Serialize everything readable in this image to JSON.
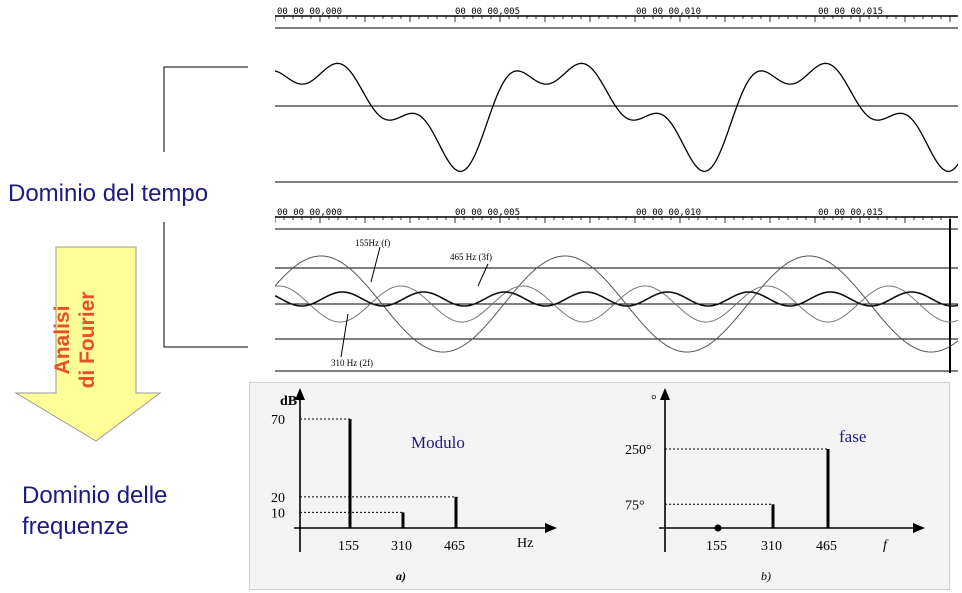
{
  "labels": {
    "time_domain": "Dominio del tempo",
    "freq_domain_line1": "Dominio delle",
    "freq_domain_line2": "frequenze",
    "fourier_line1": "Analisi",
    "fourier_line2": "di Fourier"
  },
  "waveform_top": {
    "timestamps": [
      "00 00 00,000",
      "00 00 00,005",
      "00 00 00,010",
      "00 00 00,015"
    ]
  },
  "waveform_components": {
    "timestamps": [
      "00 00 00,000",
      "00 00 00,005",
      "00 00 00,010",
      "00 00 00,015"
    ],
    "annotations": [
      "155Hz (f)",
      "465 Hz (3f)",
      "310 Hz (2f)"
    ]
  },
  "chart_data": [
    {
      "type": "bar",
      "title": "Modulo",
      "ylabel": "dB",
      "xlabel": "Hz",
      "caption": "a)",
      "x": [
        155,
        310,
        465
      ],
      "values": [
        70,
        10,
        20
      ],
      "yticks": [
        "70",
        "20",
        "10"
      ],
      "xticks": [
        "155",
        "310",
        "465"
      ]
    },
    {
      "type": "bar",
      "title": "fase",
      "ylabel": "°",
      "xlabel": "f",
      "caption": "b)",
      "x": [
        155,
        310,
        465
      ],
      "values": [
        0,
        75,
        250
      ],
      "yticks": [
        "250°",
        "75°"
      ],
      "xticks": [
        "155",
        "310",
        "465"
      ]
    }
  ],
  "colors": {
    "text_blue": "#1b1b80",
    "arrow_fill": "#ffff99",
    "arrow_text": "#e8502a"
  }
}
